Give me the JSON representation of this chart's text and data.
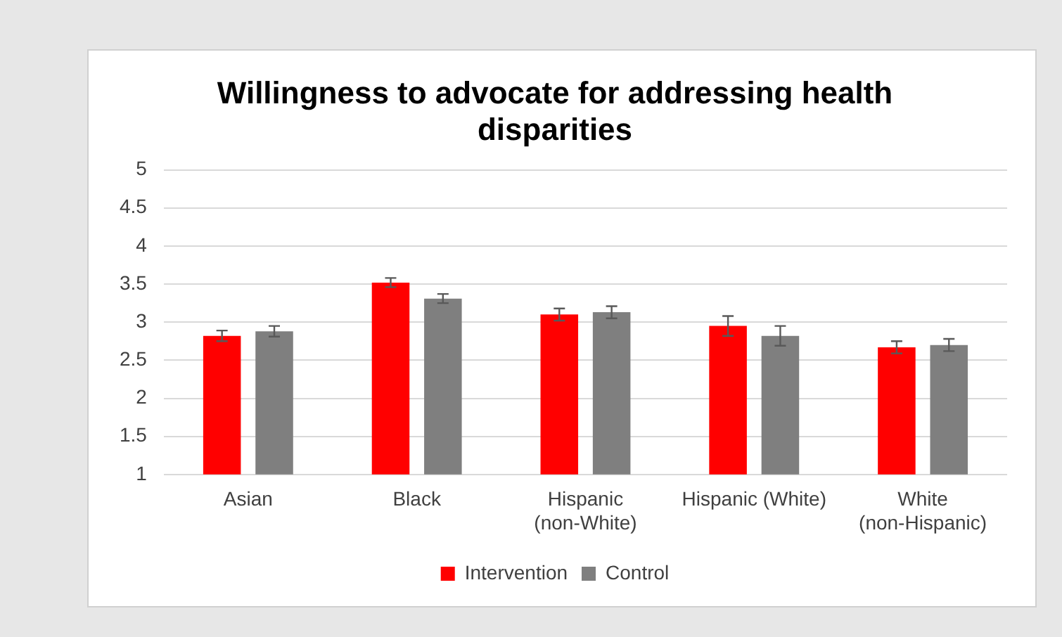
{
  "chart_data": {
    "type": "bar",
    "title": "Willingness to advocate for addressing health disparities",
    "categories": [
      "Asian",
      "Black",
      "Hispanic (non-White)",
      "Hispanic (White)",
      "White (non-Hispanic)"
    ],
    "series": [
      {
        "name": "Intervention",
        "color": "#ff0000",
        "values": [
          2.82,
          3.52,
          3.1,
          2.95,
          2.67
        ],
        "errors": [
          0.07,
          0.06,
          0.08,
          0.13,
          0.08
        ]
      },
      {
        "name": "Control",
        "color": "#7f7f7f",
        "values": [
          2.88,
          3.31,
          3.13,
          2.82,
          2.7
        ],
        "errors": [
          0.07,
          0.06,
          0.08,
          0.13,
          0.08
        ]
      }
    ],
    "ylim": [
      1,
      5
    ],
    "yticks": [
      1,
      1.5,
      2,
      2.5,
      3,
      3.5,
      4,
      4.5,
      5
    ],
    "grid": "y",
    "legend": "bottom"
  }
}
